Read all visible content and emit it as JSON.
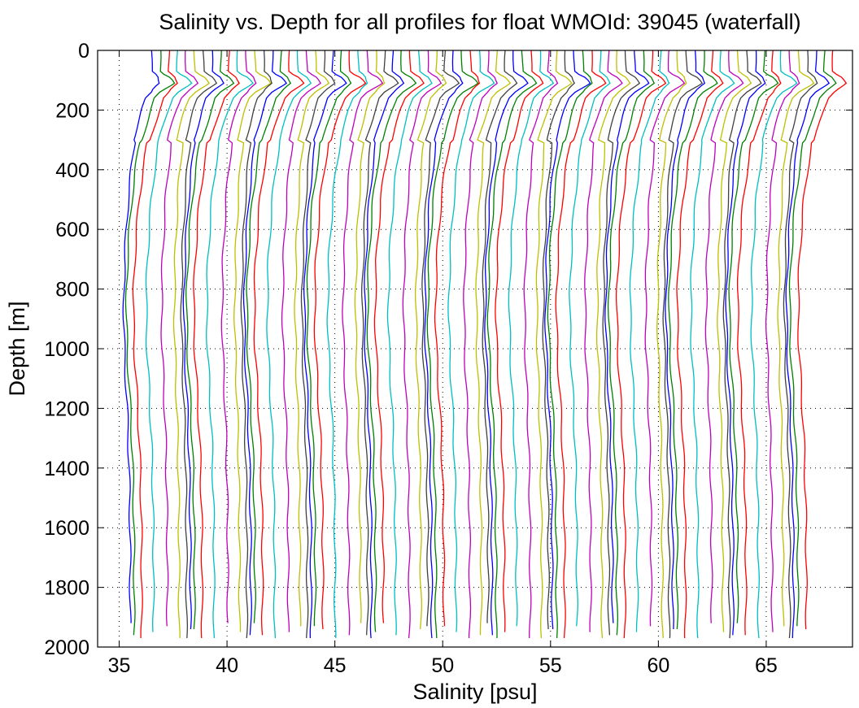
{
  "chart_data": {
    "type": "line",
    "title": "Salinity vs. Depth for all profiles for float WMOId: 39045 (waterfall)",
    "xlabel": "Salinity [psu]",
    "ylabel": "Depth [m]",
    "xlim": [
      34,
      69
    ],
    "ylim": [
      2000,
      0
    ],
    "y_reversed": true,
    "xticks": [
      35,
      40,
      45,
      50,
      55,
      60,
      65
    ],
    "yticks": [
      0,
      200,
      400,
      600,
      800,
      1000,
      1200,
      1400,
      1600,
      1800,
      2000
    ],
    "grid": "dotted",
    "waterfall": {
      "profile_count": 80,
      "first_surface_salinity": 36.5,
      "offset_per_profile": 0.4,
      "colors": [
        "#0000ff",
        "#008000",
        "#ff0000",
        "#00bfbf",
        "#bf00bf",
        "#bfbf00",
        "#404040"
      ],
      "mean_profile": {
        "depth": [
          0,
          40,
          70,
          90,
          110,
          130,
          160,
          200,
          300,
          400,
          500,
          600,
          700,
          800,
          900,
          1000,
          1100,
          1200,
          1300,
          1400,
          1500,
          1600,
          1700,
          1800,
          1900,
          1980
        ],
        "salinity_anomaly": [
          0,
          0,
          0,
          0.35,
          0.5,
          0.15,
          -0.25,
          -0.45,
          -0.85,
          -1.05,
          -1.2,
          -1.3,
          -1.38,
          -1.42,
          -1.43,
          -1.4,
          -1.33,
          -1.26,
          -1.2,
          -1.16,
          -1.13,
          -1.11,
          -1.1,
          -1.1,
          -1.1,
          -1.1
        ]
      }
    }
  }
}
